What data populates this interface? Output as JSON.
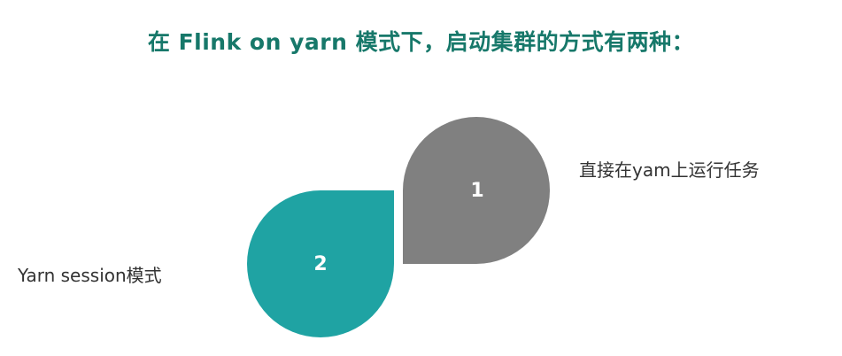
{
  "title": "在 Flink on yarn 模式下，启动集群的方式有两种：",
  "items": [
    {
      "number": "1",
      "label": "直接在yam上运行任务",
      "color": "#808080"
    },
    {
      "number": "2",
      "label": "Yarn session模式",
      "color": "#1fa3a3"
    }
  ]
}
